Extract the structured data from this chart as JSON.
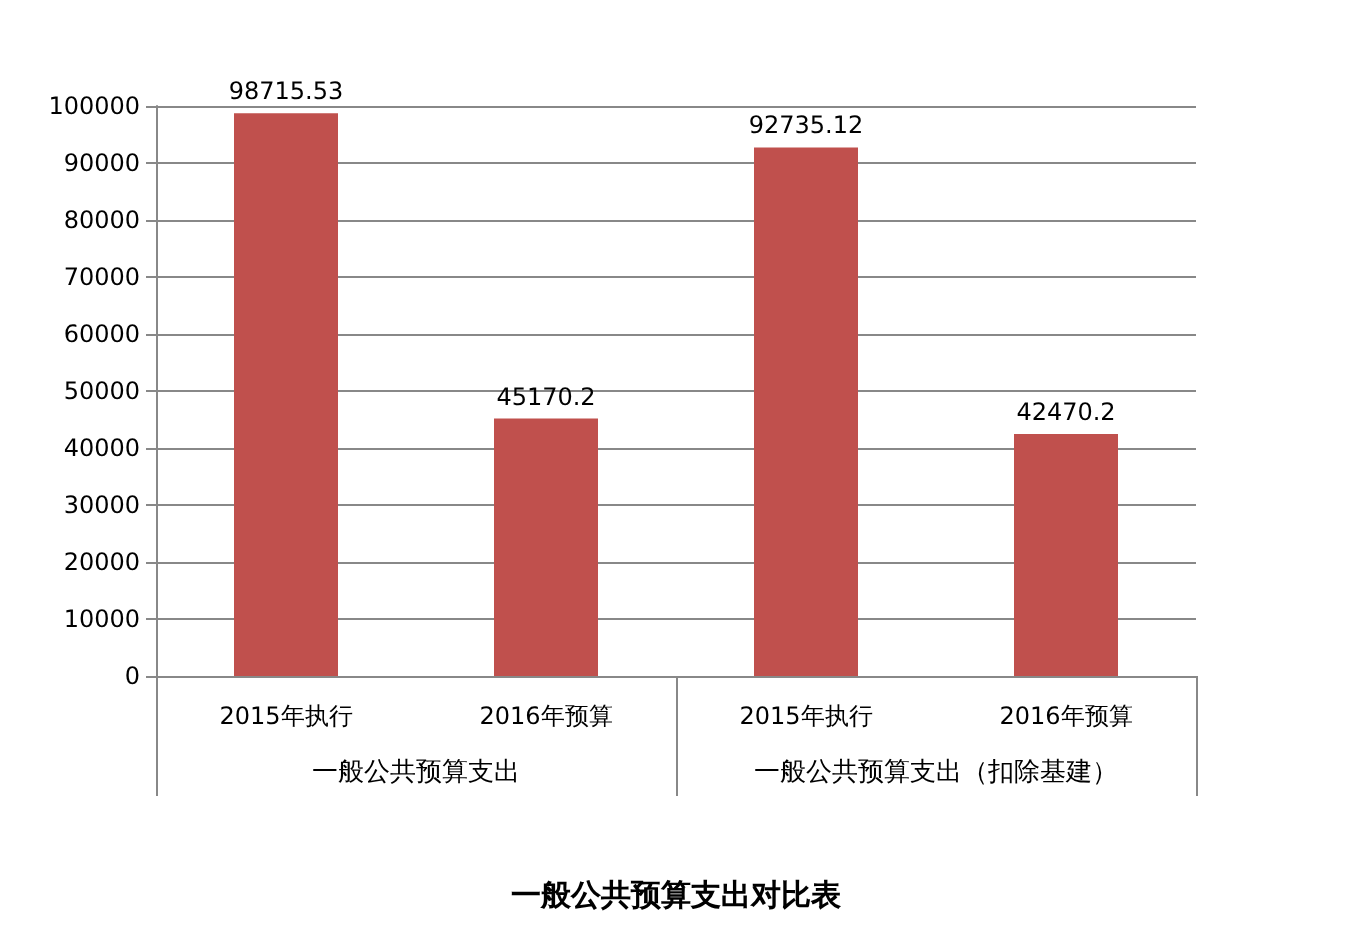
{
  "chart_data": {
    "type": "bar",
    "title": "一般公共预算支出对比表",
    "categories": [
      "2015年执行",
      "2016年预算",
      "2015年执行",
      "2016年预算"
    ],
    "values": [
      98715.53,
      45170.2,
      92735.12,
      42470.2
    ],
    "color": "#c0504d",
    "ylim": [
      0,
      100000
    ],
    "yticks": [
      0,
      10000,
      20000,
      30000,
      40000,
      50000,
      60000,
      70000,
      80000,
      90000,
      100000
    ],
    "grid": "y",
    "data_labels": true,
    "annotations": [
      "一般公共预算支出",
      "一般公共预算支出（扣除基建）"
    ]
  }
}
